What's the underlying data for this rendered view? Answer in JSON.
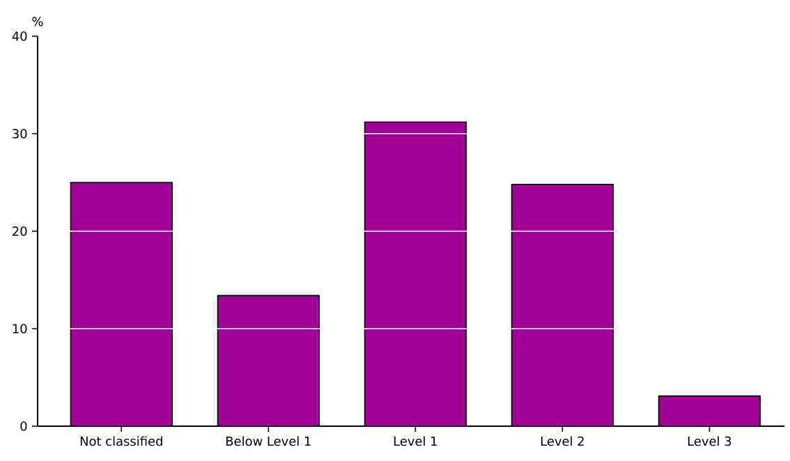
{
  "chart_data": {
    "type": "bar",
    "ylabel": "%",
    "categories": [
      "Not classified",
      "Below Level 1",
      "Level 1",
      "Level 2",
      "Level 3"
    ],
    "values": [
      25.0,
      13.4,
      31.2,
      24.8,
      3.1
    ],
    "color": "#a00095",
    "ylim": [
      0,
      40
    ],
    "yticks": [
      0,
      10,
      20,
      30,
      40
    ],
    "grid": "y"
  }
}
